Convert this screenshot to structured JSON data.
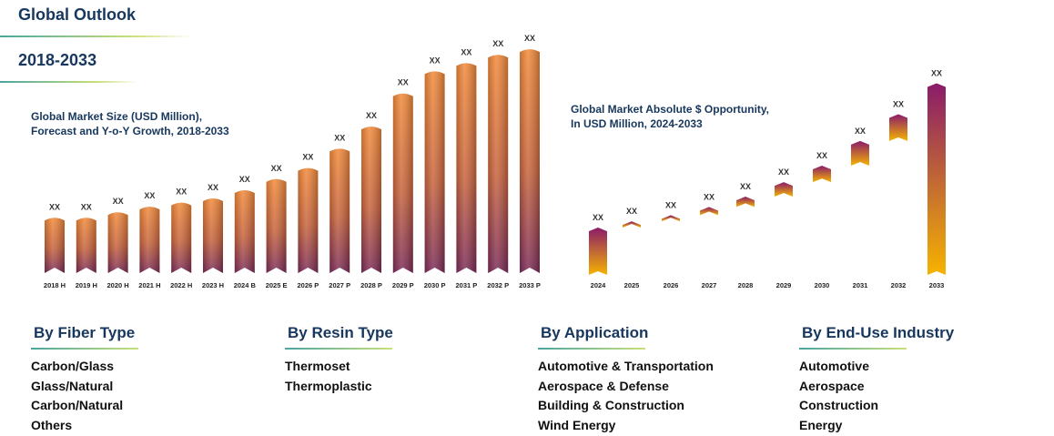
{
  "header": {
    "title": "Global Outlook",
    "period": "2018-2033"
  },
  "chart_data": [
    {
      "type": "bar",
      "title": "Global Market Size (USD Million),",
      "subtitle": "Forecast and Y-o-Y Growth, 2018-2033",
      "categories": [
        "2018 H",
        "2019 H",
        "2020 H",
        "2021 H",
        "2022 H",
        "2023 H",
        "2024 B",
        "2025 E",
        "2026 P",
        "2027 P",
        "2028 P",
        "2029 P",
        "2030 P",
        "2031 P",
        "2032 P",
        "2033 P"
      ],
      "values": [
        20,
        20,
        22,
        24,
        25.5,
        27,
        30,
        34,
        38,
        45,
        53,
        65,
        73,
        76,
        79,
        81
      ],
      "data_labels": [
        "XX",
        "XX",
        "XX",
        "XX",
        "XX",
        "XX",
        "XX",
        "XX",
        "XX",
        "XX",
        "XX",
        "XX",
        "XX",
        "XX",
        "XX",
        "XX"
      ],
      "ylim": [
        0,
        85
      ],
      "colors": {
        "top": "#f28a3a",
        "bottom": "#7b2b58"
      }
    },
    {
      "type": "bar",
      "title": "Global Market Absolute $ Opportunity,",
      "subtitle": "In USD Million, 2024-2033",
      "categories": [
        "2024",
        "2025",
        "2026",
        "2027",
        "2028",
        "2029",
        "2030",
        "2031",
        "2032",
        "2033"
      ],
      "base_value": 23,
      "floating_bars": [
        [
          0,
          23
        ],
        [
          23,
          26
        ],
        [
          26,
          29
        ],
        [
          29,
          33
        ],
        [
          33,
          38
        ],
        [
          38,
          45
        ],
        [
          45,
          53
        ],
        [
          53,
          65
        ],
        [
          65,
          78
        ],
        [
          0,
          93
        ]
      ],
      "data_labels": [
        "XX",
        "XX",
        "XX",
        "XX",
        "XX",
        "XX",
        "XX",
        "XX",
        "XX",
        "XX"
      ],
      "ylim": [
        0,
        95
      ],
      "colors": {
        "top": "#8a1b6a",
        "bottom": "#f6b300"
      }
    }
  ],
  "segments": [
    {
      "title": "By Fiber Type",
      "items": [
        "Carbon/Glass",
        "Glass/Natural",
        "Carbon/Natural",
        "Others"
      ]
    },
    {
      "title": "By Resin Type",
      "items": [
        "Thermoset",
        "Thermoplastic"
      ]
    },
    {
      "title": "By Application",
      "items": [
        "Automotive & Transportation",
        "Aerospace & Defense",
        "Building & Construction",
        "Wind Energy"
      ]
    },
    {
      "title": "By End-Use Industry",
      "items": [
        "Automotive",
        "Aerospace",
        "Construction",
        "Energy"
      ]
    }
  ]
}
